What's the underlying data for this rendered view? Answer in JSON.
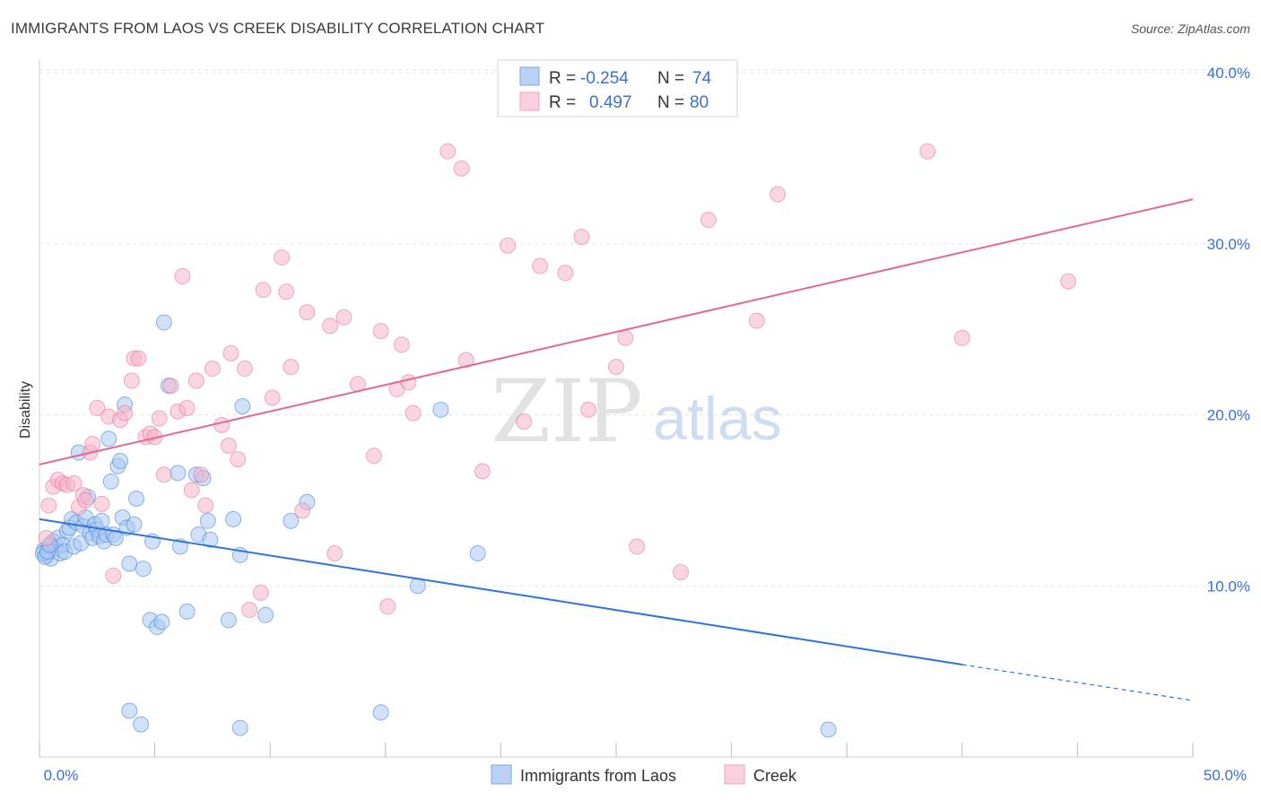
{
  "header": {
    "title": "IMMIGRANTS FROM LAOS VS CREEK DISABILITY CORRELATION CHART",
    "source": "Source: ZipAtlas.com"
  },
  "watermark": {
    "zip": "ZIP",
    "atlas": "atlas"
  },
  "legend_stats": [
    {
      "r_label": "R =",
      "r_value": "-0.254",
      "n_label": "N =",
      "n_value": "74",
      "color": "#8ab4f0"
    },
    {
      "r_label": "R =",
      "r_value": "0.497",
      "n_label": "N =",
      "n_value": "80",
      "color": "#f4a9bf"
    }
  ],
  "chart_data": {
    "type": "scatter",
    "title": "IMMIGRANTS FROM LAOS VS CREEK DISABILITY CORRELATION CHART",
    "xlabel": "",
    "ylabel": "Disability",
    "xlim": [
      0,
      50
    ],
    "ylim": [
      0,
      41
    ],
    "x_tick_labels": [
      "0.0%",
      "50.0%"
    ],
    "y_ticks": [
      10,
      20,
      30,
      40
    ],
    "y_tick_labels": [
      "10.0%",
      "20.0%",
      "30.0%",
      "40.0%"
    ],
    "grid": true,
    "legend_position": "bottom",
    "series": [
      {
        "name": "Immigrants from Laos",
        "color": "#3b7dd8",
        "fill": "#a9c8f2",
        "trend": {
          "x0": 0,
          "y0": 13.9,
          "x1": 40,
          "y1": 5.4,
          "dash_to_x": 50,
          "dash_to_y": 3.3
        },
        "points": [
          [
            0.2,
            12.1
          ],
          [
            0.3,
            11.8
          ],
          [
            0.4,
            12.3
          ],
          [
            0.5,
            11.6
          ],
          [
            0.6,
            12.6
          ],
          [
            0.7,
            12.2
          ],
          [
            0.8,
            12.8
          ],
          [
            0.9,
            11.9
          ],
          [
            1.0,
            12.4
          ],
          [
            1.1,
            12.0
          ],
          [
            1.2,
            13.2
          ],
          [
            1.3,
            13.4
          ],
          [
            1.4,
            13.9
          ],
          [
            1.5,
            12.3
          ],
          [
            1.6,
            13.7
          ],
          [
            1.7,
            17.8
          ],
          [
            1.8,
            12.5
          ],
          [
            1.9,
            13.5
          ],
          [
            2.0,
            14.0
          ],
          [
            2.1,
            15.2
          ],
          [
            2.2,
            13.1
          ],
          [
            2.3,
            12.8
          ],
          [
            2.4,
            13.6
          ],
          [
            2.5,
            13.3
          ],
          [
            2.6,
            12.9
          ],
          [
            2.7,
            13.8
          ],
          [
            2.8,
            12.6
          ],
          [
            2.9,
            13.0
          ],
          [
            3.0,
            18.6
          ],
          [
            3.1,
            16.1
          ],
          [
            3.2,
            13.0
          ],
          [
            3.3,
            12.8
          ],
          [
            3.4,
            17.0
          ],
          [
            3.5,
            17.3
          ],
          [
            3.6,
            14.0
          ],
          [
            3.7,
            20.6
          ],
          [
            3.8,
            13.4
          ],
          [
            3.9,
            11.3
          ],
          [
            4.1,
            13.6
          ],
          [
            4.2,
            15.1
          ],
          [
            4.5,
            11.0
          ],
          [
            4.8,
            8.0
          ],
          [
            4.9,
            12.6
          ],
          [
            5.1,
            7.6
          ],
          [
            5.3,
            7.9
          ],
          [
            5.4,
            25.4
          ],
          [
            5.6,
            21.7
          ],
          [
            6.0,
            16.6
          ],
          [
            6.1,
            12.3
          ],
          [
            6.4,
            8.5
          ],
          [
            6.8,
            16.5
          ],
          [
            6.9,
            13.0
          ],
          [
            7.1,
            16.3
          ],
          [
            7.3,
            13.8
          ],
          [
            7.4,
            12.7
          ],
          [
            8.2,
            8.0
          ],
          [
            8.4,
            13.9
          ],
          [
            8.7,
            11.8
          ],
          [
            8.8,
            20.5
          ],
          [
            9.8,
            8.3
          ],
          [
            10.9,
            13.8
          ],
          [
            11.6,
            14.9
          ],
          [
            16.4,
            10.0
          ],
          [
            17.4,
            20.3
          ],
          [
            19.0,
            11.9
          ],
          [
            3.9,
            2.7
          ],
          [
            4.4,
            1.9
          ],
          [
            8.7,
            1.7
          ],
          [
            14.8,
            2.6
          ],
          [
            34.2,
            1.6
          ],
          [
            0.15,
            11.9
          ],
          [
            0.25,
            11.7
          ],
          [
            0.35,
            12.0
          ],
          [
            0.45,
            12.4
          ]
        ]
      },
      {
        "name": "Creek",
        "color": "#e07197",
        "fill": "#f5b5c8",
        "trend": {
          "x0": 0,
          "y0": 17.1,
          "x1": 50,
          "y1": 32.6
        },
        "points": [
          [
            0.3,
            12.8
          ],
          [
            0.4,
            14.7
          ],
          [
            0.6,
            15.8
          ],
          [
            0.8,
            16.2
          ],
          [
            1.0,
            16.0
          ],
          [
            1.2,
            15.9
          ],
          [
            1.5,
            16.0
          ],
          [
            1.7,
            14.6
          ],
          [
            1.9,
            15.3
          ],
          [
            2.0,
            15.0
          ],
          [
            2.2,
            17.8
          ],
          [
            2.3,
            18.3
          ],
          [
            2.5,
            20.4
          ],
          [
            2.7,
            14.8
          ],
          [
            3.0,
            19.9
          ],
          [
            3.2,
            10.6
          ],
          [
            3.5,
            19.7
          ],
          [
            3.7,
            20.1
          ],
          [
            4.0,
            22.0
          ],
          [
            4.1,
            23.3
          ],
          [
            4.3,
            23.3
          ],
          [
            4.6,
            18.7
          ],
          [
            4.8,
            18.9
          ],
          [
            5.0,
            18.7
          ],
          [
            5.2,
            19.8
          ],
          [
            5.4,
            16.5
          ],
          [
            5.7,
            21.7
          ],
          [
            6.0,
            20.2
          ],
          [
            6.2,
            28.1
          ],
          [
            6.4,
            20.4
          ],
          [
            6.6,
            15.6
          ],
          [
            6.8,
            22.0
          ],
          [
            7.0,
            16.5
          ],
          [
            7.2,
            14.7
          ],
          [
            7.5,
            22.7
          ],
          [
            7.9,
            19.4
          ],
          [
            8.2,
            18.2
          ],
          [
            8.3,
            23.6
          ],
          [
            8.6,
            17.4
          ],
          [
            8.9,
            22.7
          ],
          [
            9.1,
            8.6
          ],
          [
            9.6,
            9.6
          ],
          [
            9.7,
            27.3
          ],
          [
            10.1,
            21.0
          ],
          [
            10.5,
            29.2
          ],
          [
            10.7,
            27.2
          ],
          [
            10.9,
            22.8
          ],
          [
            11.4,
            14.4
          ],
          [
            11.6,
            26.0
          ],
          [
            12.6,
            25.2
          ],
          [
            12.8,
            11.9
          ],
          [
            13.2,
            25.7
          ],
          [
            13.8,
            21.8
          ],
          [
            14.5,
            17.6
          ],
          [
            14.8,
            24.9
          ],
          [
            15.1,
            8.8
          ],
          [
            15.5,
            21.5
          ],
          [
            15.7,
            24.1
          ],
          [
            16.0,
            21.9
          ],
          [
            16.2,
            20.1
          ],
          [
            17.7,
            35.4
          ],
          [
            18.3,
            34.4
          ],
          [
            18.5,
            23.2
          ],
          [
            19.2,
            16.7
          ],
          [
            20.3,
            29.9
          ],
          [
            21.0,
            19.6
          ],
          [
            21.7,
            28.7
          ],
          [
            22.8,
            28.3
          ],
          [
            23.5,
            30.4
          ],
          [
            23.8,
            20.3
          ],
          [
            25.0,
            22.8
          ],
          [
            25.4,
            24.5
          ],
          [
            25.9,
            12.3
          ],
          [
            27.8,
            10.8
          ],
          [
            29.0,
            31.4
          ],
          [
            31.1,
            25.5
          ],
          [
            32.0,
            32.9
          ],
          [
            38.5,
            35.4
          ],
          [
            40.0,
            24.5
          ],
          [
            44.6,
            27.8
          ]
        ]
      }
    ]
  },
  "bottom_legend": [
    {
      "label": "Immigrants from Laos",
      "color": "#a9c8f2",
      "border": "#7aa6e3"
    },
    {
      "label": "Creek",
      "color": "#f9cad7",
      "border": "#eea3bb"
    }
  ]
}
